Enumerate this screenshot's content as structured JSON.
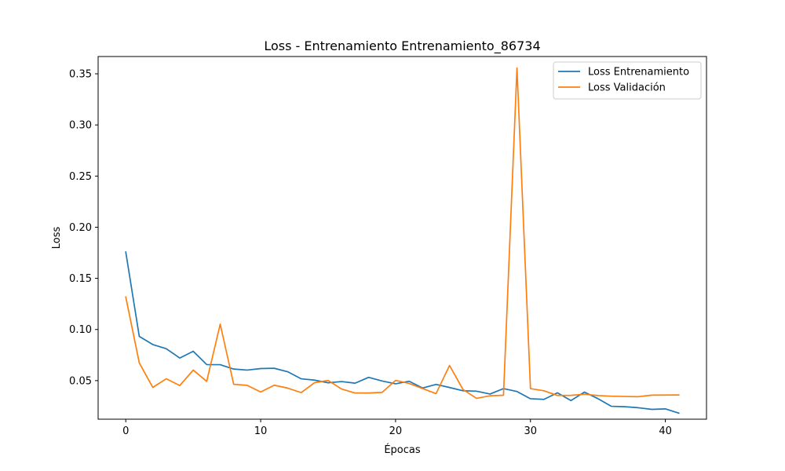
{
  "chart_data": {
    "type": "line",
    "title": "Loss - Entrenamiento Entrenamiento_86734",
    "xlabel": "Épocas",
    "ylabel": "Loss",
    "xlim": [
      -2.05,
      43.05
    ],
    "ylim": [
      0.0123,
      0.3669
    ],
    "xticks": [
      0,
      10,
      20,
      30,
      40
    ],
    "yticks": [
      0.05,
      0.1,
      0.15,
      0.2,
      0.25,
      0.3,
      0.35
    ],
    "ytick_labels": [
      "0.05",
      "0.10",
      "0.15",
      "0.20",
      "0.25",
      "0.30",
      "0.35"
    ],
    "grid": false,
    "legend_position": "top-right",
    "x": [
      0,
      1,
      2,
      3,
      4,
      5,
      6,
      7,
      8,
      9,
      10,
      11,
      12,
      13,
      14,
      15,
      16,
      17,
      18,
      19,
      20,
      21,
      22,
      23,
      24,
      25,
      26,
      27,
      28,
      29,
      30,
      31,
      32,
      33,
      34,
      35,
      36,
      37,
      38,
      39,
      40,
      41
    ],
    "series": [
      {
        "name": "Loss Entrenamiento",
        "color": "#1f77b4",
        "values": [
          0.1757,
          0.0933,
          0.0853,
          0.0812,
          0.0721,
          0.0787,
          0.0657,
          0.0656,
          0.0613,
          0.0603,
          0.0618,
          0.0621,
          0.0587,
          0.0518,
          0.0505,
          0.0479,
          0.0491,
          0.0475,
          0.0532,
          0.0497,
          0.0469,
          0.0494,
          0.0428,
          0.0463,
          0.0433,
          0.0401,
          0.0397,
          0.0369,
          0.0422,
          0.0394,
          0.0323,
          0.0317,
          0.0381,
          0.0305,
          0.0388,
          0.0324,
          0.0249,
          0.0245,
          0.0235,
          0.0219,
          0.0224,
          0.0182
        ]
      },
      {
        "name": "Loss Validación",
        "color": "#ff7f0e",
        "values": [
          0.1318,
          0.0674,
          0.0434,
          0.0518,
          0.0452,
          0.0603,
          0.0493,
          0.1052,
          0.0464,
          0.0454,
          0.0389,
          0.0455,
          0.0427,
          0.0383,
          0.048,
          0.0502,
          0.0418,
          0.0379,
          0.0379,
          0.0385,
          0.0502,
          0.0473,
          0.0423,
          0.0373,
          0.0648,
          0.0413,
          0.0327,
          0.0352,
          0.0357,
          0.3557,
          0.0422,
          0.0401,
          0.0355,
          0.0356,
          0.0367,
          0.0354,
          0.0348,
          0.0345,
          0.0343,
          0.0358,
          0.0359,
          0.036
        ]
      }
    ]
  }
}
